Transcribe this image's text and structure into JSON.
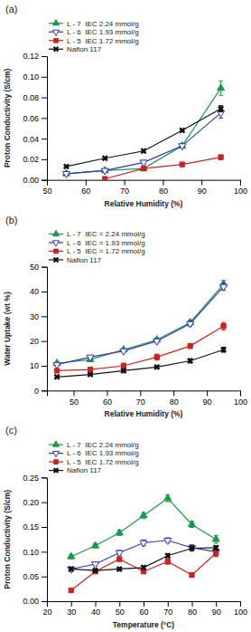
{
  "chart_data": [
    {
      "type": "line",
      "title": "(a)",
      "xlabel": "Relative Humidity (%)",
      "ylabel": "Proton Conductivity (S/cm)",
      "xlim": [
        50,
        100
      ],
      "ylim": [
        0,
        0.12
      ],
      "xticks": [
        50,
        60,
        70,
        80,
        90,
        100
      ],
      "yticks": [
        {
          "value": 0,
          "label": "0.00"
        },
        0.02,
        0.04,
        0.06,
        0.08,
        {
          "value": 0.1,
          "label": "0.10"
        },
        0.12
      ],
      "legend": "top",
      "series": [
        {
          "name": "L - 7  IEC 2.24 mmol/g",
          "color": "#1a9850",
          "marker": "triangle-up",
          "x": [
            55,
            65,
            75,
            85,
            95
          ],
          "values": [
            0.006,
            0.009,
            0.011,
            0.033,
            0.089
          ],
          "errors": [
            0.001,
            0.001,
            0.001,
            0.002,
            0.007
          ]
        },
        {
          "name": "L - 6  IEC 1.93 mmol/g",
          "color": "#3333bb",
          "marker": "triangle-down-open",
          "x": [
            55,
            65,
            75,
            85,
            95
          ],
          "values": [
            0.006,
            0.009,
            0.017,
            0.033,
            0.065
          ],
          "errors": [
            0.001,
            0.001,
            0.002,
            0.002,
            0.005
          ]
        },
        {
          "name": "L - 5  IEC 1.72 mmol/g",
          "color": "#cc2222",
          "marker": "square",
          "x": [
            65,
            75,
            85,
            95
          ],
          "values": [
            0.001,
            0.011,
            0.015,
            0.022
          ],
          "errors": [
            0.001,
            0.001,
            0.001,
            0.002
          ]
        },
        {
          "name": "Nafion 117",
          "color": "#111111",
          "marker": "x",
          "x": [
            55,
            65,
            75,
            85,
            95
          ],
          "values": [
            0.013,
            0.021,
            0.028,
            0.048,
            0.069
          ],
          "errors": [
            0.001,
            0.001,
            0.001,
            0.001,
            0.003
          ]
        }
      ]
    },
    {
      "type": "line",
      "title": "(b)",
      "xlabel": "Relative Humidity (%)",
      "ylabel": "Water Uptake (wt %)",
      "xlim": [
        42,
        100
      ],
      "ylim": [
        0,
        50
      ],
      "xticks": [
        50,
        60,
        70,
        80,
        90,
        100
      ],
      "yticks": [
        0,
        10,
        20,
        30,
        40,
        50
      ],
      "legend": "top",
      "series": [
        {
          "name": "L - 7  IEC = 2.24 mmol/g",
          "color": "#1a9850",
          "marker": "triangle-up",
          "x": [
            45,
            55,
            65,
            75,
            85,
            95
          ],
          "values": [
            11.0,
            12.5,
            16.5,
            20.5,
            27.5,
            43.0
          ],
          "errors": [
            0.5,
            0.5,
            0.5,
            0.8,
            1.0,
            1.5
          ]
        },
        {
          "name": "L - 6  IEC = 1.93 mmol/g",
          "color": "#3333bb",
          "marker": "triangle-down-open",
          "x": [
            45,
            55,
            65,
            75,
            85,
            95
          ],
          "values": [
            10.5,
            13.5,
            16.0,
            20.0,
            27.0,
            42.0
          ],
          "errors": [
            0.5,
            0.5,
            0.5,
            0.8,
            1.0,
            1.5
          ]
        },
        {
          "name": "L - 5  IEC = 1.72 mmol/g",
          "color": "#cc2222",
          "marker": "square",
          "x": [
            45,
            55,
            65,
            75,
            85,
            95
          ],
          "values": [
            8.0,
            8.5,
            10.0,
            13.5,
            18.0,
            26.0
          ],
          "errors": [
            0.5,
            0.5,
            1.0,
            1.2,
            1.0,
            1.5
          ]
        },
        {
          "name": "Nafion 117",
          "color": "#111111",
          "marker": "x",
          "x": [
            45,
            55,
            65,
            75,
            85,
            95
          ],
          "values": [
            5.5,
            6.5,
            8.0,
            9.5,
            12.0,
            16.5
          ],
          "errors": [
            0.3,
            0.3,
            0.5,
            0.5,
            0.8,
            1.0
          ]
        }
      ]
    },
    {
      "type": "line",
      "title": "(c)",
      "xlabel": "Temperature (°C)",
      "ylabel": "Proton Conductivity (S/cm)",
      "xlim": [
        20,
        100
      ],
      "ylim": [
        0,
        0.25
      ],
      "xticks": [
        20,
        30,
        40,
        50,
        60,
        70,
        80,
        90,
        100
      ],
      "yticks": [
        {
          "value": 0,
          "label": "0.00"
        },
        0.05,
        {
          "value": 0.1,
          "label": "0.10"
        },
        0.15,
        {
          "value": 0.2,
          "label": "0.20"
        },
        0.25
      ],
      "legend": "top",
      "series": [
        {
          "name": "L - 7  IEC 2.24 mmol/g",
          "color": "#1a9850",
          "marker": "triangle-up",
          "x": [
            30,
            40,
            50,
            60,
            70,
            80,
            90
          ],
          "values": [
            0.09,
            0.112,
            0.138,
            0.173,
            0.208,
            0.155,
            0.125
          ],
          "errors": [
            0.004,
            0.004,
            0.005,
            0.006,
            0.007,
            0.006,
            0.008
          ]
        },
        {
          "name": "L - 6  IEC 1.93 mmol/g",
          "color": "#3333bb",
          "marker": "triangle-down-open",
          "x": [
            30,
            40,
            50,
            60,
            70,
            80,
            90
          ],
          "values": [
            0.065,
            0.075,
            0.098,
            0.118,
            0.123,
            0.108,
            0.1
          ],
          "errors": [
            0.003,
            0.004,
            0.005,
            0.006,
            0.005,
            0.006,
            0.01
          ]
        },
        {
          "name": "L - 5  IEC 1.72 mmol/g",
          "color": "#cc2222",
          "marker": "square",
          "x": [
            30,
            40,
            50,
            60,
            70,
            80,
            90
          ],
          "values": [
            0.022,
            0.06,
            0.085,
            0.06,
            0.08,
            0.053,
            0.097
          ],
          "errors": [
            0.002,
            0.003,
            0.004,
            0.004,
            0.005,
            0.004,
            0.005
          ]
        },
        {
          "name": "Nafion 117",
          "color": "#111111",
          "marker": "x",
          "x": [
            30,
            40,
            50,
            60,
            70,
            80,
            90
          ],
          "values": [
            0.065,
            0.062,
            0.065,
            0.068,
            0.092,
            0.107,
            0.108
          ],
          "errors": [
            0.003,
            0.003,
            0.003,
            0.003,
            0.004,
            0.004,
            0.004
          ]
        }
      ]
    }
  ]
}
